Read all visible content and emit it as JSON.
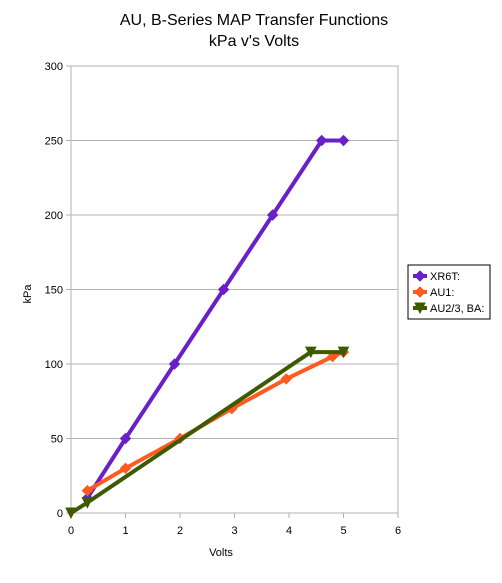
{
  "chart_data": {
    "type": "line",
    "title": "AU, B-Series MAP Transfer Functions",
    "subtitle": "kPa v's Volts",
    "xlabel": "Volts",
    "ylabel": "kPa",
    "xlim": [
      0,
      6
    ],
    "ylim": [
      0,
      300
    ],
    "x_ticks": [
      "0",
      "1",
      "2",
      "3",
      "4",
      "5",
      "6"
    ],
    "y_ticks": [
      "0",
      "50",
      "100",
      "150",
      "200",
      "250",
      "300"
    ],
    "grid": "horizontal",
    "legend_position": "right",
    "series": [
      {
        "name": "XR6T:",
        "color": "#6a1fc8",
        "marker": "diamond",
        "points": [
          [
            0.3,
            10
          ],
          [
            1.0,
            50
          ],
          [
            1.9,
            100
          ],
          [
            2.8,
            150
          ],
          [
            3.7,
            200
          ],
          [
            4.6,
            250
          ],
          [
            5.0,
            250
          ]
        ]
      },
      {
        "name": "AU1:",
        "color": "#ff5a1f",
        "marker": "diamond",
        "points": [
          [
            0.3,
            15
          ],
          [
            1.0,
            30
          ],
          [
            2.0,
            50
          ],
          [
            2.95,
            70
          ],
          [
            3.95,
            90
          ],
          [
            4.8,
            105
          ],
          [
            5.0,
            108
          ]
        ]
      },
      {
        "name": "AU2/3, BA:",
        "color": "#3d5a00",
        "marker": "triangle-down",
        "points": [
          [
            0.0,
            0
          ],
          [
            0.3,
            7
          ],
          [
            4.4,
            108
          ],
          [
            5.0,
            108
          ]
        ]
      }
    ]
  }
}
